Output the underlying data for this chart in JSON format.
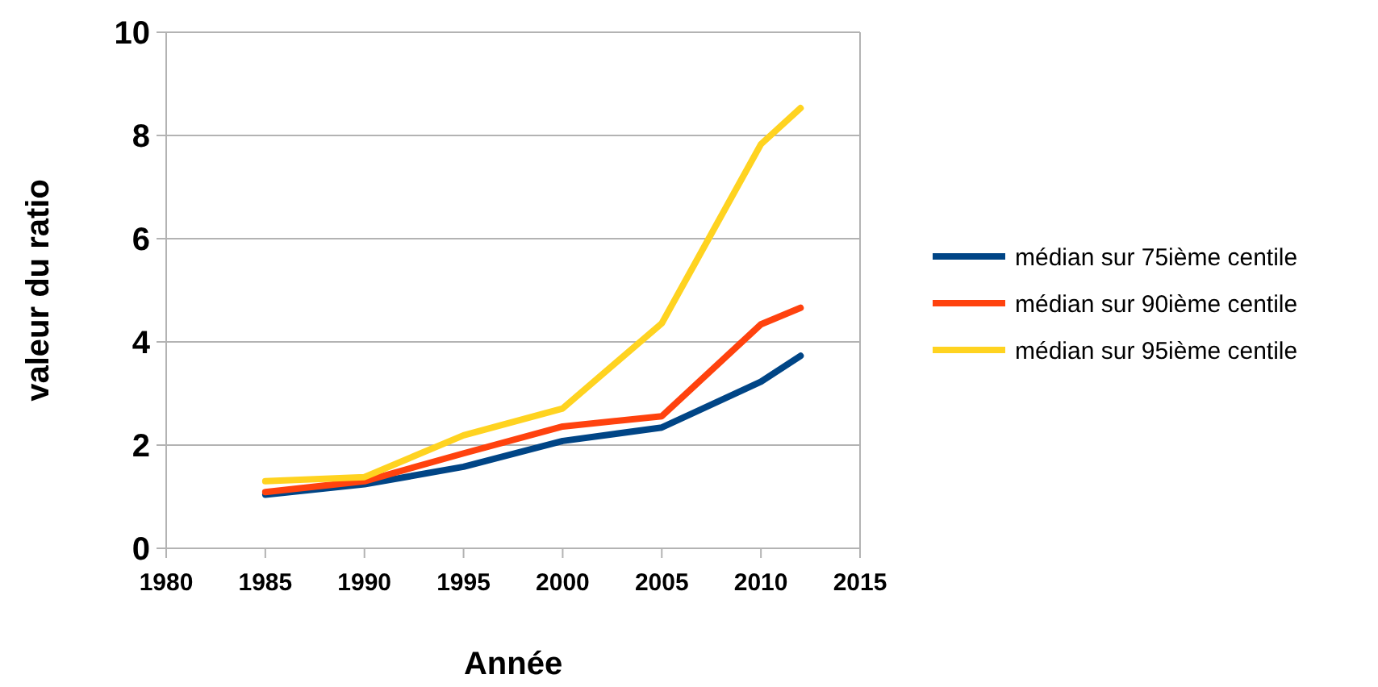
{
  "chart_data": {
    "type": "line",
    "xlabel": "Année",
    "ylabel": "valeur du ratio",
    "x": [
      1985,
      1990,
      1995,
      2000,
      2005,
      2010,
      2012
    ],
    "series": [
      {
        "name": "médian sur 75ième centile",
        "color": "#004586",
        "values": [
          1.04,
          1.24,
          1.58,
          2.08,
          2.34,
          3.23,
          3.73
        ]
      },
      {
        "name": "médian sur 90ième centile",
        "color": "#ff420e",
        "values": [
          1.09,
          1.3,
          1.84,
          2.36,
          2.56,
          4.34,
          4.66
        ]
      },
      {
        "name": "médian sur 95ième centile",
        "color": "#ffd320",
        "values": [
          1.3,
          1.38,
          2.19,
          2.71,
          4.36,
          7.83,
          8.53
        ]
      }
    ],
    "xlim": [
      1980,
      2015
    ],
    "xticks": [
      1980,
      1985,
      1990,
      1995,
      2000,
      2005,
      2010,
      2015
    ],
    "ylim": [
      0,
      10
    ],
    "yticks": [
      0,
      2,
      4,
      6,
      8,
      10
    ],
    "grid": "y",
    "legend": "right",
    "marker": "none",
    "line_style": "solid"
  }
}
